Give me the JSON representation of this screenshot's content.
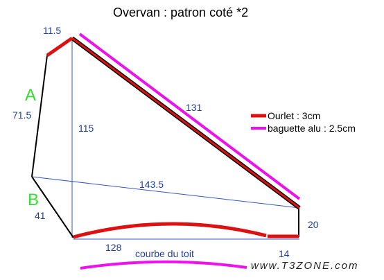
{
  "title": "Overvan : patron coté *2",
  "measures": {
    "top_edge": "11.5",
    "hypotenuse": "131",
    "vertical": "115",
    "diagonal": "143.5",
    "side_a": "71.5",
    "side_b": "41",
    "bottom_main": "128",
    "bottom_short": "14",
    "right_edge": "20"
  },
  "sections": {
    "a": "A",
    "b": "B"
  },
  "curve_label": "courbe du toit",
  "legend": {
    "items": [
      {
        "label": "Ourlet : 3cm",
        "color": "#dd1111"
      },
      {
        "label": "baguette alu : 2.5cm",
        "color": "#ee11ee"
      }
    ]
  },
  "watermark": "www.T3ZONE.com",
  "colors": {
    "outline": "#000000",
    "guide": "#3355cc",
    "ourlet": "#dd1111",
    "baguette": "#ee11ee",
    "text_blue": "#1f3fa0",
    "letter_green": "#33dd33"
  }
}
